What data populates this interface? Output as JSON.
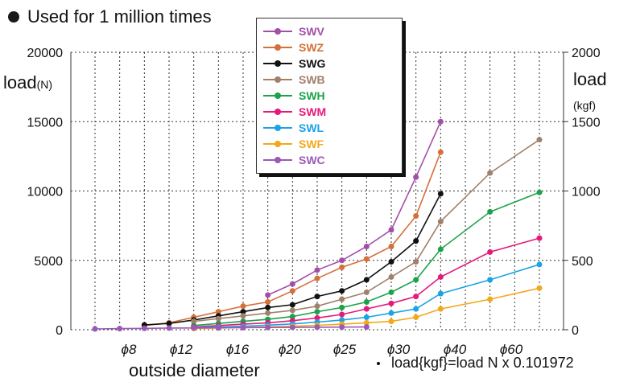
{
  "title": "Used for 1 million times",
  "y_left_label": "load",
  "y_left_unit": "(N)",
  "y_right_label": "load",
  "y_right_unit": "(kgf)",
  "x_label": "outside diameter",
  "note": "load{kgf}=load N x 0.101972",
  "chart_data": {
    "type": "line",
    "title": "Used for 1 million times",
    "xlabel": "outside diameter",
    "ylabel": "load(N)",
    "ylabel_right": "load (kgf)",
    "ylim": [
      0,
      20000
    ],
    "ylim_right": [
      0,
      2000
    ],
    "y_ticks": [
      "0",
      "5000",
      "10000",
      "15000",
      "20000"
    ],
    "y_right_ticks": [
      "0",
      "500",
      "1000",
      "1500",
      "2000"
    ],
    "x_tick_labels": [
      "ϕ8",
      "ϕ12",
      "ϕ16",
      "ϕ20",
      "ϕ25",
      "ϕ30",
      "ϕ40",
      "ϕ60"
    ],
    "x": [
      6,
      8,
      10,
      12,
      14,
      16,
      18,
      20,
      22,
      25,
      28,
      30,
      35,
      40,
      45,
      50,
      55,
      60,
      65
    ],
    "grid": true,
    "legend_position": "top-center",
    "series": [
      {
        "name": "SWV",
        "color": "#a34fa8",
        "values": [
          null,
          null,
          null,
          null,
          null,
          null,
          null,
          2500,
          3300,
          4300,
          5000,
          6000,
          7200,
          11000,
          15000,
          null,
          null,
          null,
          null
        ]
      },
      {
        "name": "SWZ",
        "color": "#d4703a",
        "values": [
          null,
          null,
          300,
          500,
          900,
          1300,
          1700,
          2000,
          2800,
          3700,
          4500,
          5100,
          6000,
          8200,
          12800,
          null,
          null,
          null,
          null
        ]
      },
      {
        "name": "SWG",
        "color": "#111111",
        "values": [
          null,
          null,
          350,
          450,
          700,
          1000,
          1300,
          1600,
          1800,
          2400,
          2800,
          3600,
          4900,
          6400,
          9800,
          null,
          null,
          null,
          null
        ]
      },
      {
        "name": "SWB",
        "color": "#a0806a",
        "values": [
          null,
          null,
          null,
          null,
          600,
          800,
          1000,
          1200,
          1400,
          1700,
          2200,
          2700,
          3800,
          4900,
          7800,
          null,
          11300,
          null,
          13700
        ]
      },
      {
        "name": "SWH",
        "color": "#1aa34a",
        "values": [
          null,
          null,
          null,
          null,
          300,
          450,
          600,
          750,
          950,
          1300,
          1600,
          2000,
          2700,
          3600,
          5800,
          null,
          8500,
          null,
          9900
        ]
      },
      {
        "name": "SWM",
        "color": "#e6197a",
        "values": [
          null,
          null,
          null,
          null,
          200,
          300,
          400,
          500,
          650,
          850,
          1100,
          1500,
          1900,
          2400,
          3800,
          null,
          5600,
          null,
          6600
        ]
      },
      {
        "name": "SWL",
        "color": "#1aa3e6",
        "values": [
          null,
          null,
          null,
          null,
          150,
          200,
          250,
          330,
          420,
          550,
          700,
          900,
          1200,
          1500,
          2600,
          null,
          3600,
          null,
          4700
        ]
      },
      {
        "name": "SWF",
        "color": "#f2a81a",
        "values": [
          null,
          null,
          null,
          null,
          90,
          120,
          160,
          200,
          250,
          320,
          400,
          500,
          600,
          900,
          1500,
          null,
          2200,
          null,
          3000
        ]
      },
      {
        "name": "SWC",
        "color": "#9b59b6",
        "values": [
          60,
          80,
          100,
          120,
          130,
          140,
          150,
          160,
          170,
          180,
          190,
          200,
          null,
          null,
          null,
          null,
          null,
          null,
          null
        ]
      }
    ]
  }
}
